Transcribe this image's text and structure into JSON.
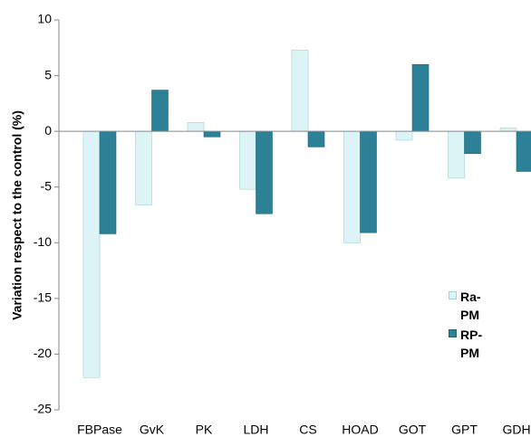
{
  "chart_data": {
    "type": "bar",
    "y_label": "Variation respect to the control (%)",
    "categories": [
      "FBPase",
      "GvK",
      "PK",
      "LDH",
      "CS",
      "HOAD",
      "GOT",
      "GPT",
      "GDH"
    ],
    "series": [
      {
        "name": "Ra-PM",
        "color": "#dcf4f6",
        "values": [
          -22.1,
          -6.6,
          0.8,
          -5.2,
          7.3,
          -10.0,
          -0.8,
          -4.2,
          0.3
        ]
      },
      {
        "name": "RP-PM",
        "color": "#2c8197",
        "values": [
          -9.2,
          3.7,
          -0.5,
          -7.4,
          -1.4,
          -9.1,
          6.0,
          -2.0,
          -3.6
        ]
      }
    ],
    "ylim": [
      -25,
      10
    ],
    "yticks": [
      10,
      5,
      0,
      -5,
      -10,
      -15,
      -20,
      -25
    ],
    "grid": false
  }
}
